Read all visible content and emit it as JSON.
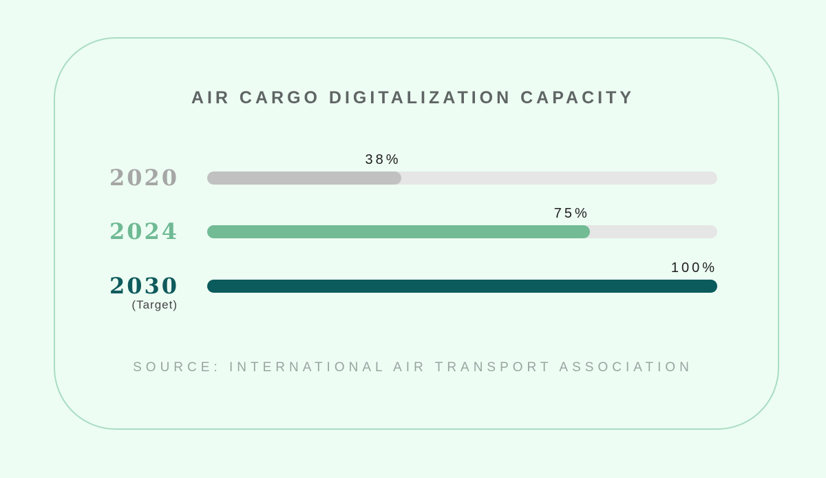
{
  "chart_data": {
    "type": "bar",
    "orientation": "horizontal",
    "title": "AIR CARGO DIGITALIZATION CAPACITY",
    "source": "SOURCE: INTERNATIONAL AIR TRANSPORT ASSOCIATION",
    "value_range": [
      0,
      100
    ],
    "bars": [
      {
        "year": "2020",
        "sublabel": "",
        "value": 38,
        "value_label": "38%",
        "label_color": "#a6a6a6",
        "fill_color": "#c1c1c1"
      },
      {
        "year": "2024",
        "sublabel": "",
        "value": 75,
        "value_label": "75%",
        "label_color": "#6fb994",
        "fill_color": "#72bb95"
      },
      {
        "year": "2030",
        "sublabel": "(Target)",
        "value": 100,
        "value_label": "100%",
        "label_color": "#0f5a5c",
        "fill_color": "#0b5a5c"
      }
    ],
    "track_color": "#e6e6e6",
    "background_color": "#edfdf3",
    "border_color": "#a9dcc2"
  }
}
